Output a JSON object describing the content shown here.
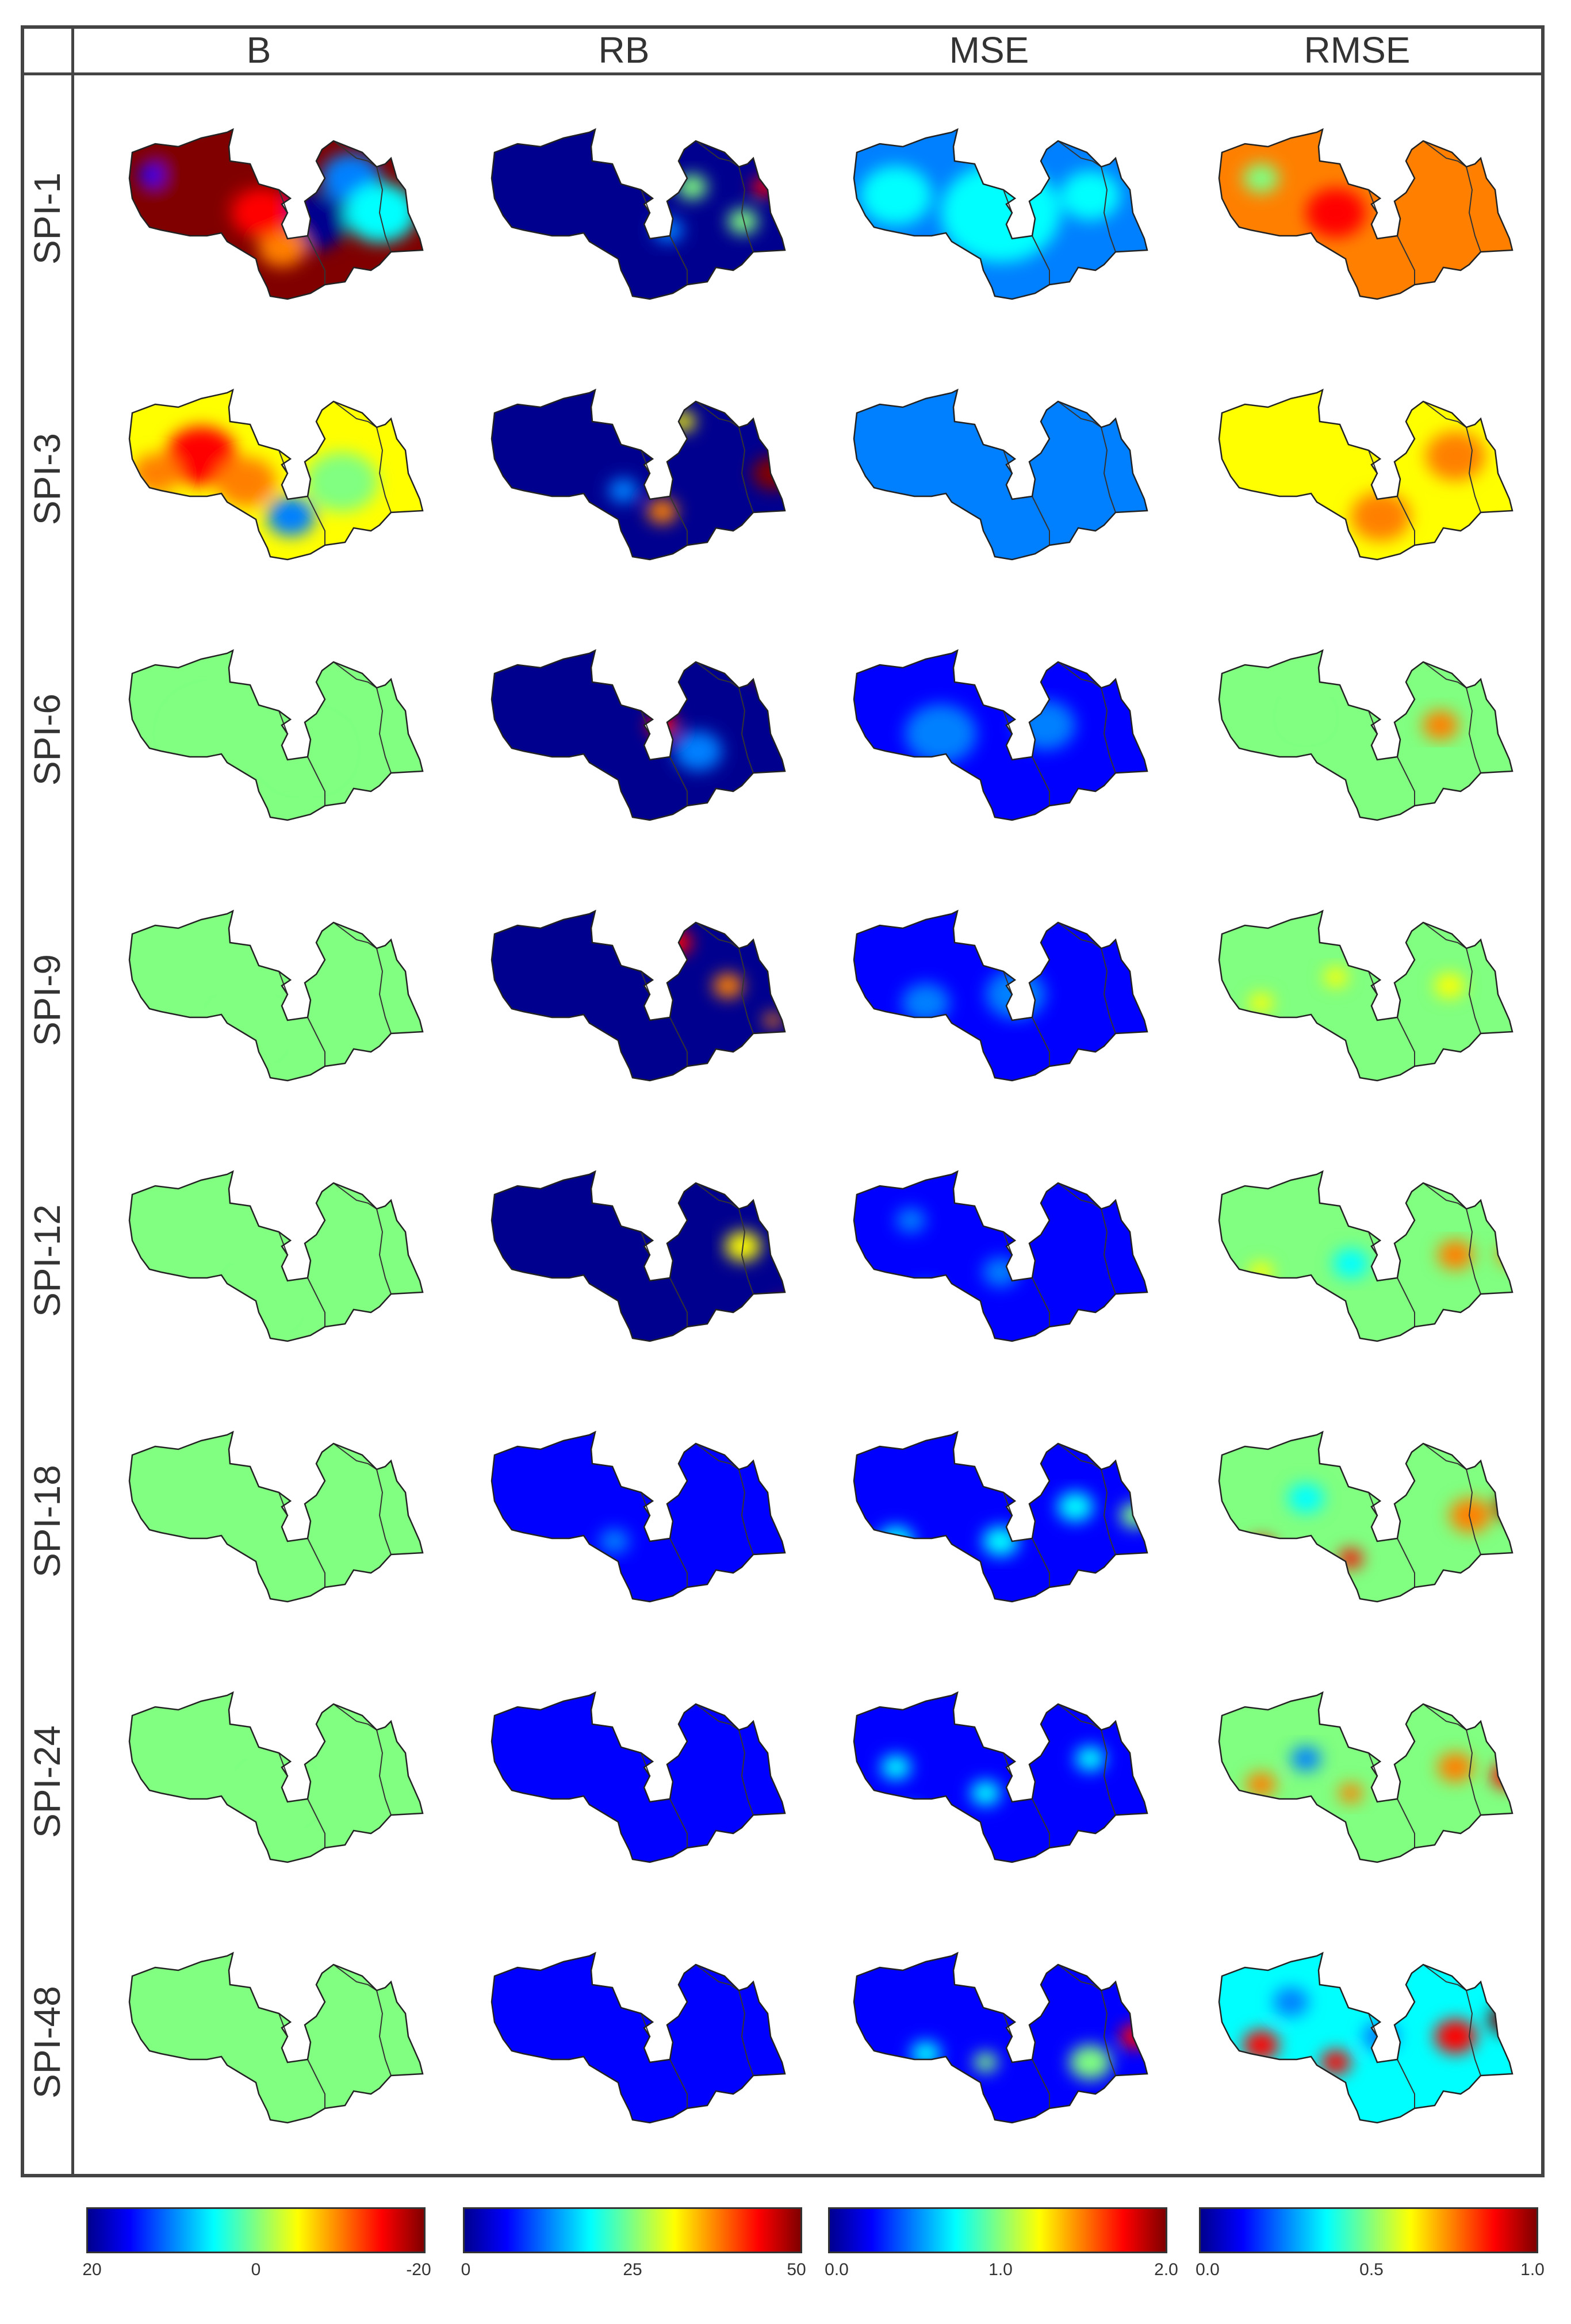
{
  "columns": [
    {
      "key": "B",
      "label": "B"
    },
    {
      "key": "RB",
      "label": "RB"
    },
    {
      "key": "MSE",
      "label": "MSE"
    },
    {
      "key": "RMSE",
      "label": "RMSE"
    }
  ],
  "rows": [
    {
      "label": "SPI-1"
    },
    {
      "label": "SPI-3"
    },
    {
      "label": "SPI-6"
    },
    {
      "label": "SPI-9"
    },
    {
      "label": "SPI-12"
    },
    {
      "label": "SPI-18"
    },
    {
      "label": "SPI-24"
    },
    {
      "label": "SPI-48"
    }
  ],
  "colorbars": [
    {
      "column": "B",
      "ticks": [
        "20",
        "0",
        "-20"
      ]
    },
    {
      "column": "RB",
      "ticks": [
        "0",
        "25",
        "50"
      ]
    },
    {
      "column": "MSE",
      "ticks": [
        "0.0",
        "1.0",
        "2.0"
      ]
    },
    {
      "column": "RMSE",
      "ticks": [
        "0.0",
        "0.5",
        "1.0"
      ]
    }
  ],
  "colormap": [
    "#00008f",
    "#0000ff",
    "#0080ff",
    "#00ffff",
    "#80ff80",
    "#ffff00",
    "#ff8000",
    "#ff0000",
    "#800000"
  ],
  "map_fields": {
    "B": [
      {
        "base": 0.99,
        "blobs": [
          [
            0.2,
            0.3,
            0.15,
            0.99
          ],
          [
            0.08,
            0.28,
            0.04,
            0.1
          ],
          [
            0.62,
            0.55,
            0.12,
            0.05
          ],
          [
            0.52,
            0.7,
            0.08,
            0.7
          ],
          [
            0.75,
            0.3,
            0.1,
            0.3
          ],
          [
            0.85,
            0.5,
            0.12,
            0.35
          ],
          [
            0.45,
            0.5,
            0.1,
            0.85
          ]
        ]
      },
      {
        "base": 0.6,
        "blobs": [
          [
            0.25,
            0.4,
            0.12,
            0.88
          ],
          [
            0.1,
            0.5,
            0.08,
            0.8
          ],
          [
            0.12,
            0.75,
            0.06,
            0.95
          ],
          [
            0.4,
            0.55,
            0.1,
            0.8
          ],
          [
            0.55,
            0.75,
            0.08,
            0.3
          ],
          [
            0.72,
            0.55,
            0.12,
            0.5
          ]
        ]
      },
      {
        "base": 0.49,
        "blobs": [
          [
            0.3,
            0.5,
            0.15,
            0.52
          ],
          [
            0.6,
            0.6,
            0.12,
            0.5
          ]
        ]
      },
      {
        "base": 0.48,
        "blobs": [
          [
            0.4,
            0.7,
            0.1,
            0.52
          ]
        ]
      },
      {
        "base": 0.47,
        "blobs": [
          [
            0.45,
            0.75,
            0.1,
            0.5
          ]
        ]
      },
      {
        "base": 0.47,
        "blobs": []
      },
      {
        "base": 0.47,
        "blobs": [
          [
            0.5,
            0.6,
            0.1,
            0.5
          ]
        ]
      },
      {
        "base": 0.47,
        "blobs": []
      }
    ],
    "RB": [
      {
        "base": 0.05,
        "blobs": [
          [
            0.68,
            0.35,
            0.05,
            0.45
          ],
          [
            0.85,
            0.55,
            0.05,
            0.5
          ],
          [
            0.92,
            0.35,
            0.04,
            0.85
          ],
          [
            0.6,
            0.6,
            0.05,
            0.3
          ]
        ]
      },
      {
        "base": 0.05,
        "blobs": [
          [
            0.65,
            0.2,
            0.04,
            0.6
          ],
          [
            0.95,
            0.5,
            0.07,
            0.99
          ],
          [
            0.58,
            0.72,
            0.05,
            0.75
          ],
          [
            0.45,
            0.6,
            0.05,
            0.25
          ]
        ]
      },
      {
        "base": 0.06,
        "blobs": [
          [
            0.58,
            0.45,
            0.05,
            0.85
          ],
          [
            0.93,
            0.12,
            0.06,
            0.95
          ],
          [
            0.7,
            0.6,
            0.08,
            0.3
          ],
          [
            0.35,
            0.85,
            0.04,
            0.35
          ]
        ]
      },
      {
        "base": 0.06,
        "blobs": [
          [
            0.63,
            0.2,
            0.05,
            0.85
          ],
          [
            0.8,
            0.45,
            0.05,
            0.7
          ],
          [
            0.95,
            0.65,
            0.03,
            0.8
          ]
        ]
      },
      {
        "base": 0.05,
        "blobs": [
          [
            0.85,
            0.45,
            0.06,
            0.6
          ],
          [
            0.98,
            0.8,
            0.03,
            0.85
          ]
        ]
      },
      {
        "base": 0.08,
        "blobs": [
          [
            0.42,
            0.65,
            0.05,
            0.2
          ],
          [
            0.62,
            0.5,
            0.06,
            0.18
          ]
        ]
      },
      {
        "base": 0.08,
        "blobs": [
          [
            0.55,
            0.3,
            0.05,
            0.18
          ],
          [
            0.42,
            0.6,
            0.05,
            0.16
          ]
        ]
      },
      {
        "base": 0.07,
        "blobs": [
          [
            0.38,
            0.85,
            0.04,
            0.25
          ]
        ]
      }
    ],
    "MSE": [
      {
        "base": 0.3,
        "blobs": [
          [
            0.15,
            0.4,
            0.12,
            0.4
          ],
          [
            0.5,
            0.5,
            0.2,
            0.35
          ],
          [
            0.8,
            0.4,
            0.1,
            0.38
          ]
        ]
      },
      {
        "base": 0.25,
        "blobs": [
          [
            0.2,
            0.5,
            0.15,
            0.3
          ]
        ]
      },
      {
        "base": 0.15,
        "blobs": [
          [
            0.3,
            0.5,
            0.12,
            0.25
          ],
          [
            0.65,
            0.45,
            0.1,
            0.25
          ]
        ]
      },
      {
        "base": 0.13,
        "blobs": [
          [
            0.25,
            0.55,
            0.08,
            0.28
          ],
          [
            0.55,
            0.5,
            0.1,
            0.2
          ]
        ]
      },
      {
        "base": 0.12,
        "blobs": [
          [
            0.2,
            0.3,
            0.05,
            0.3
          ],
          [
            0.25,
            0.75,
            0.06,
            0.28
          ],
          [
            0.5,
            0.6,
            0.06,
            0.25
          ]
        ]
      },
      {
        "base": 0.13,
        "blobs": [
          [
            0.15,
            0.65,
            0.06,
            0.4
          ],
          [
            0.5,
            0.65,
            0.06,
            0.4
          ],
          [
            0.75,
            0.45,
            0.06,
            0.35
          ],
          [
            0.95,
            0.5,
            0.05,
            0.5
          ]
        ]
      },
      {
        "base": 0.13,
        "blobs": [
          [
            0.15,
            0.45,
            0.05,
            0.35
          ],
          [
            0.2,
            0.75,
            0.05,
            0.35
          ],
          [
            0.45,
            0.6,
            0.05,
            0.35
          ],
          [
            0.8,
            0.4,
            0.05,
            0.35
          ]
        ]
      },
      {
        "base": 0.12,
        "blobs": [
          [
            0.95,
            0.5,
            0.05,
            0.9
          ],
          [
            0.8,
            0.65,
            0.07,
            0.5
          ],
          [
            0.45,
            0.65,
            0.04,
            0.45
          ],
          [
            0.25,
            0.6,
            0.05,
            0.4
          ]
        ]
      }
    ],
    "RMSE": [
      {
        "base": 0.72,
        "blobs": [
          [
            0.15,
            0.3,
            0.06,
            0.55
          ],
          [
            0.4,
            0.5,
            0.1,
            0.82
          ],
          [
            0.75,
            0.5,
            0.12,
            0.8
          ]
        ]
      },
      {
        "base": 0.65,
        "blobs": [
          [
            0.2,
            0.4,
            0.1,
            0.6
          ],
          [
            0.8,
            0.4,
            0.1,
            0.72
          ],
          [
            0.55,
            0.75,
            0.1,
            0.7
          ]
        ]
      },
      {
        "base": 0.55,
        "blobs": [
          [
            0.75,
            0.45,
            0.06,
            0.72
          ],
          [
            0.3,
            0.4,
            0.05,
            0.5
          ]
        ]
      },
      {
        "base": 0.48,
        "blobs": [
          [
            0.15,
            0.55,
            0.04,
            0.65
          ],
          [
            0.4,
            0.4,
            0.04,
            0.6
          ],
          [
            0.78,
            0.45,
            0.05,
            0.65
          ]
        ]
      },
      {
        "base": 0.48,
        "blobs": [
          [
            0.15,
            0.6,
            0.04,
            0.65
          ],
          [
            0.45,
            0.55,
            0.06,
            0.38
          ],
          [
            0.8,
            0.5,
            0.06,
            0.7
          ],
          [
            0.98,
            0.5,
            0.04,
            0.78
          ]
        ]
      },
      {
        "base": 0.45,
        "blobs": [
          [
            0.15,
            0.7,
            0.05,
            0.88
          ],
          [
            0.45,
            0.75,
            0.04,
            0.85
          ],
          [
            0.85,
            0.5,
            0.07,
            0.78
          ],
          [
            0.98,
            0.45,
            0.05,
            0.95
          ],
          [
            0.3,
            0.4,
            0.06,
            0.35
          ]
        ]
      },
      {
        "base": 0.45,
        "blobs": [
          [
            0.15,
            0.55,
            0.05,
            0.75
          ],
          [
            0.45,
            0.6,
            0.04,
            0.75
          ],
          [
            0.8,
            0.45,
            0.06,
            0.7
          ],
          [
            0.97,
            0.5,
            0.05,
            0.85
          ],
          [
            0.3,
            0.4,
            0.05,
            0.3
          ]
        ]
      },
      {
        "base": 0.4,
        "blobs": [
          [
            0.15,
            0.55,
            0.06,
            0.85
          ],
          [
            0.4,
            0.65,
            0.05,
            0.88
          ],
          [
            0.8,
            0.5,
            0.07,
            0.85
          ],
          [
            0.97,
            0.4,
            0.06,
            0.95
          ],
          [
            0.25,
            0.3,
            0.06,
            0.25
          ],
          [
            0.55,
            0.5,
            0.06,
            0.3
          ]
        ]
      }
    ]
  }
}
